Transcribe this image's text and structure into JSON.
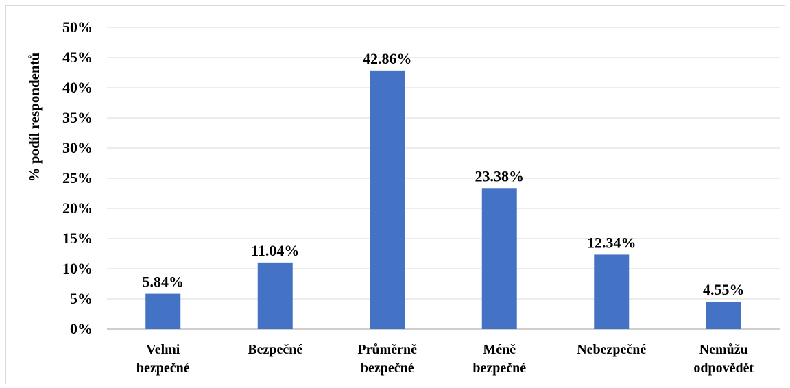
{
  "chart_data": {
    "type": "bar",
    "ylabel": "% podíl respondentů",
    "xlabel": "",
    "categories": [
      [
        "Velmi",
        "bezpečné"
      ],
      [
        "Bezpečné"
      ],
      [
        "Průměrně",
        "bezpečné"
      ],
      [
        "Méně",
        "bezpečné"
      ],
      [
        "Nebezpečné"
      ],
      [
        "Nemůžu",
        "odpovědět"
      ]
    ],
    "values": [
      5.84,
      11.04,
      42.86,
      23.38,
      12.34,
      4.55
    ],
    "data_labels": [
      "5.84%",
      "11.04%",
      "42.86%",
      "23.38%",
      "12.34%",
      "4.55%"
    ],
    "ylim": [
      0,
      50
    ],
    "yticks": [
      0,
      5,
      10,
      15,
      20,
      25,
      30,
      35,
      40,
      45,
      50
    ],
    "ytick_labels": [
      "0%",
      "5%",
      "10%",
      "15%",
      "20%",
      "25%",
      "30%",
      "35%",
      "40%",
      "45%",
      "50%"
    ],
    "grid": true,
    "legend": "none",
    "colors": {
      "bar": "#4472C4",
      "grid": "#d9d9d9",
      "axis": "#bfbfbf"
    }
  }
}
